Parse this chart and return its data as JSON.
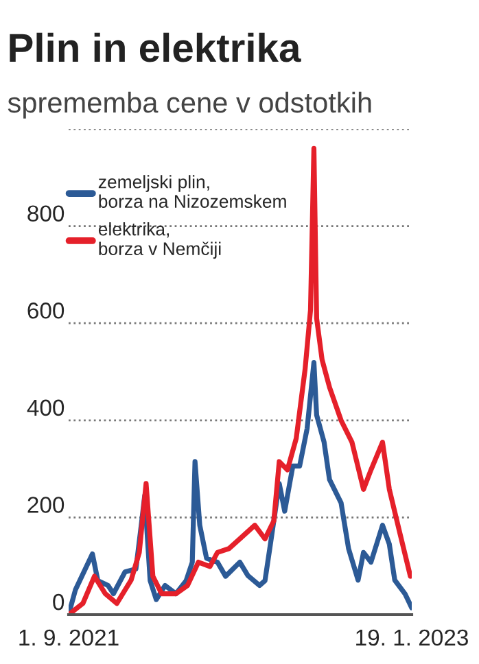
{
  "chart_data": {
    "type": "line",
    "title": "Plin in elektrika",
    "subtitle": "sprememba cene v odstotkih",
    "series": [
      {
        "name": "zemeljski plin,\nborza na Nizozemskem",
        "color": "#2c5a96",
        "x": [
          "2021-09-01",
          "2021-09-11",
          "2021-10-06",
          "2021-10-14",
          "2021-10-29",
          "2021-11-06",
          "2021-11-23",
          "2021-12-09",
          "2021-12-17",
          "2021-12-22",
          "2021-12-30",
          "2022-01-08",
          "2022-01-21",
          "2022-02-06",
          "2022-02-21",
          "2022-03-02",
          "2022-03-06",
          "2022-03-13",
          "2022-03-23",
          "2022-04-08",
          "2022-04-20",
          "2022-05-11",
          "2022-05-23",
          "2022-06-09",
          "2022-06-17",
          "2022-06-25",
          "2022-07-08",
          "2022-07-16",
          "2022-07-28",
          "2022-08-07",
          "2022-08-18",
          "2022-08-28",
          "2022-09-01",
          "2022-09-12",
          "2022-09-20",
          "2022-10-07",
          "2022-10-18",
          "2022-11-01",
          "2022-11-09",
          "2022-11-20",
          "2022-12-07",
          "2022-12-17",
          "2022-12-25",
          "2023-01-09",
          "2023-01-19"
        ],
        "values": [
          0,
          51,
          125,
          70,
          60,
          43,
          88,
          94,
          185,
          245,
          70,
          31,
          60,
          43,
          70,
          108,
          315,
          184,
          116,
          108,
          79,
          108,
          80,
          60,
          70,
          145,
          270,
          213,
          306,
          306,
          383,
          519,
          411,
          355,
          278,
          230,
          136,
          71,
          128,
          108,
          184,
          145,
          71,
          43,
          14
        ]
      },
      {
        "name": "elektrika,\nborza v Nemčiji",
        "color": "#e5202a",
        "x": [
          "2021-09-01",
          "2021-09-22",
          "2021-10-09",
          "2021-10-25",
          "2021-11-11",
          "2021-12-02",
          "2021-12-14",
          "2021-12-24",
          "2022-01-03",
          "2022-01-16",
          "2022-02-06",
          "2022-02-23",
          "2022-03-11",
          "2022-03-28",
          "2022-04-08",
          "2022-04-25",
          "2022-05-11",
          "2022-06-02",
          "2022-06-17",
          "2022-06-30",
          "2022-07-08",
          "2022-07-20",
          "2022-08-02",
          "2022-08-15",
          "2022-08-23",
          "2022-08-28",
          "2022-09-01",
          "2022-09-09",
          "2022-09-20",
          "2022-10-07",
          "2022-10-23",
          "2022-11-09",
          "2022-11-20",
          "2022-12-07",
          "2022-12-17",
          "2023-01-02",
          "2023-01-17"
        ],
        "values": [
          0,
          23,
          79,
          43,
          23,
          71,
          128,
          270,
          79,
          43,
          43,
          60,
          108,
          99,
          128,
          136,
          156,
          184,
          156,
          193,
          315,
          298,
          363,
          505,
          627,
          960,
          610,
          525,
          468,
          400,
          355,
          258,
          298,
          355,
          258,
          165,
          79
        ]
      }
    ],
    "xlim": [
      "2021-09-01",
      "2023-01-19"
    ],
    "xticks": [
      {
        "value": "2021-09-01",
        "label": "1. 9. 2021"
      },
      {
        "value": "2023-01-19",
        "label": "19. 1. 2023"
      }
    ],
    "ylim": [
      0,
      1000
    ],
    "yticks": [
      0,
      200,
      400,
      600,
      800,
      {
        "value": 1000,
        "label": null
      }
    ],
    "grid": "y",
    "legend": "top left",
    "line_style": "solid",
    "marker": "none"
  }
}
